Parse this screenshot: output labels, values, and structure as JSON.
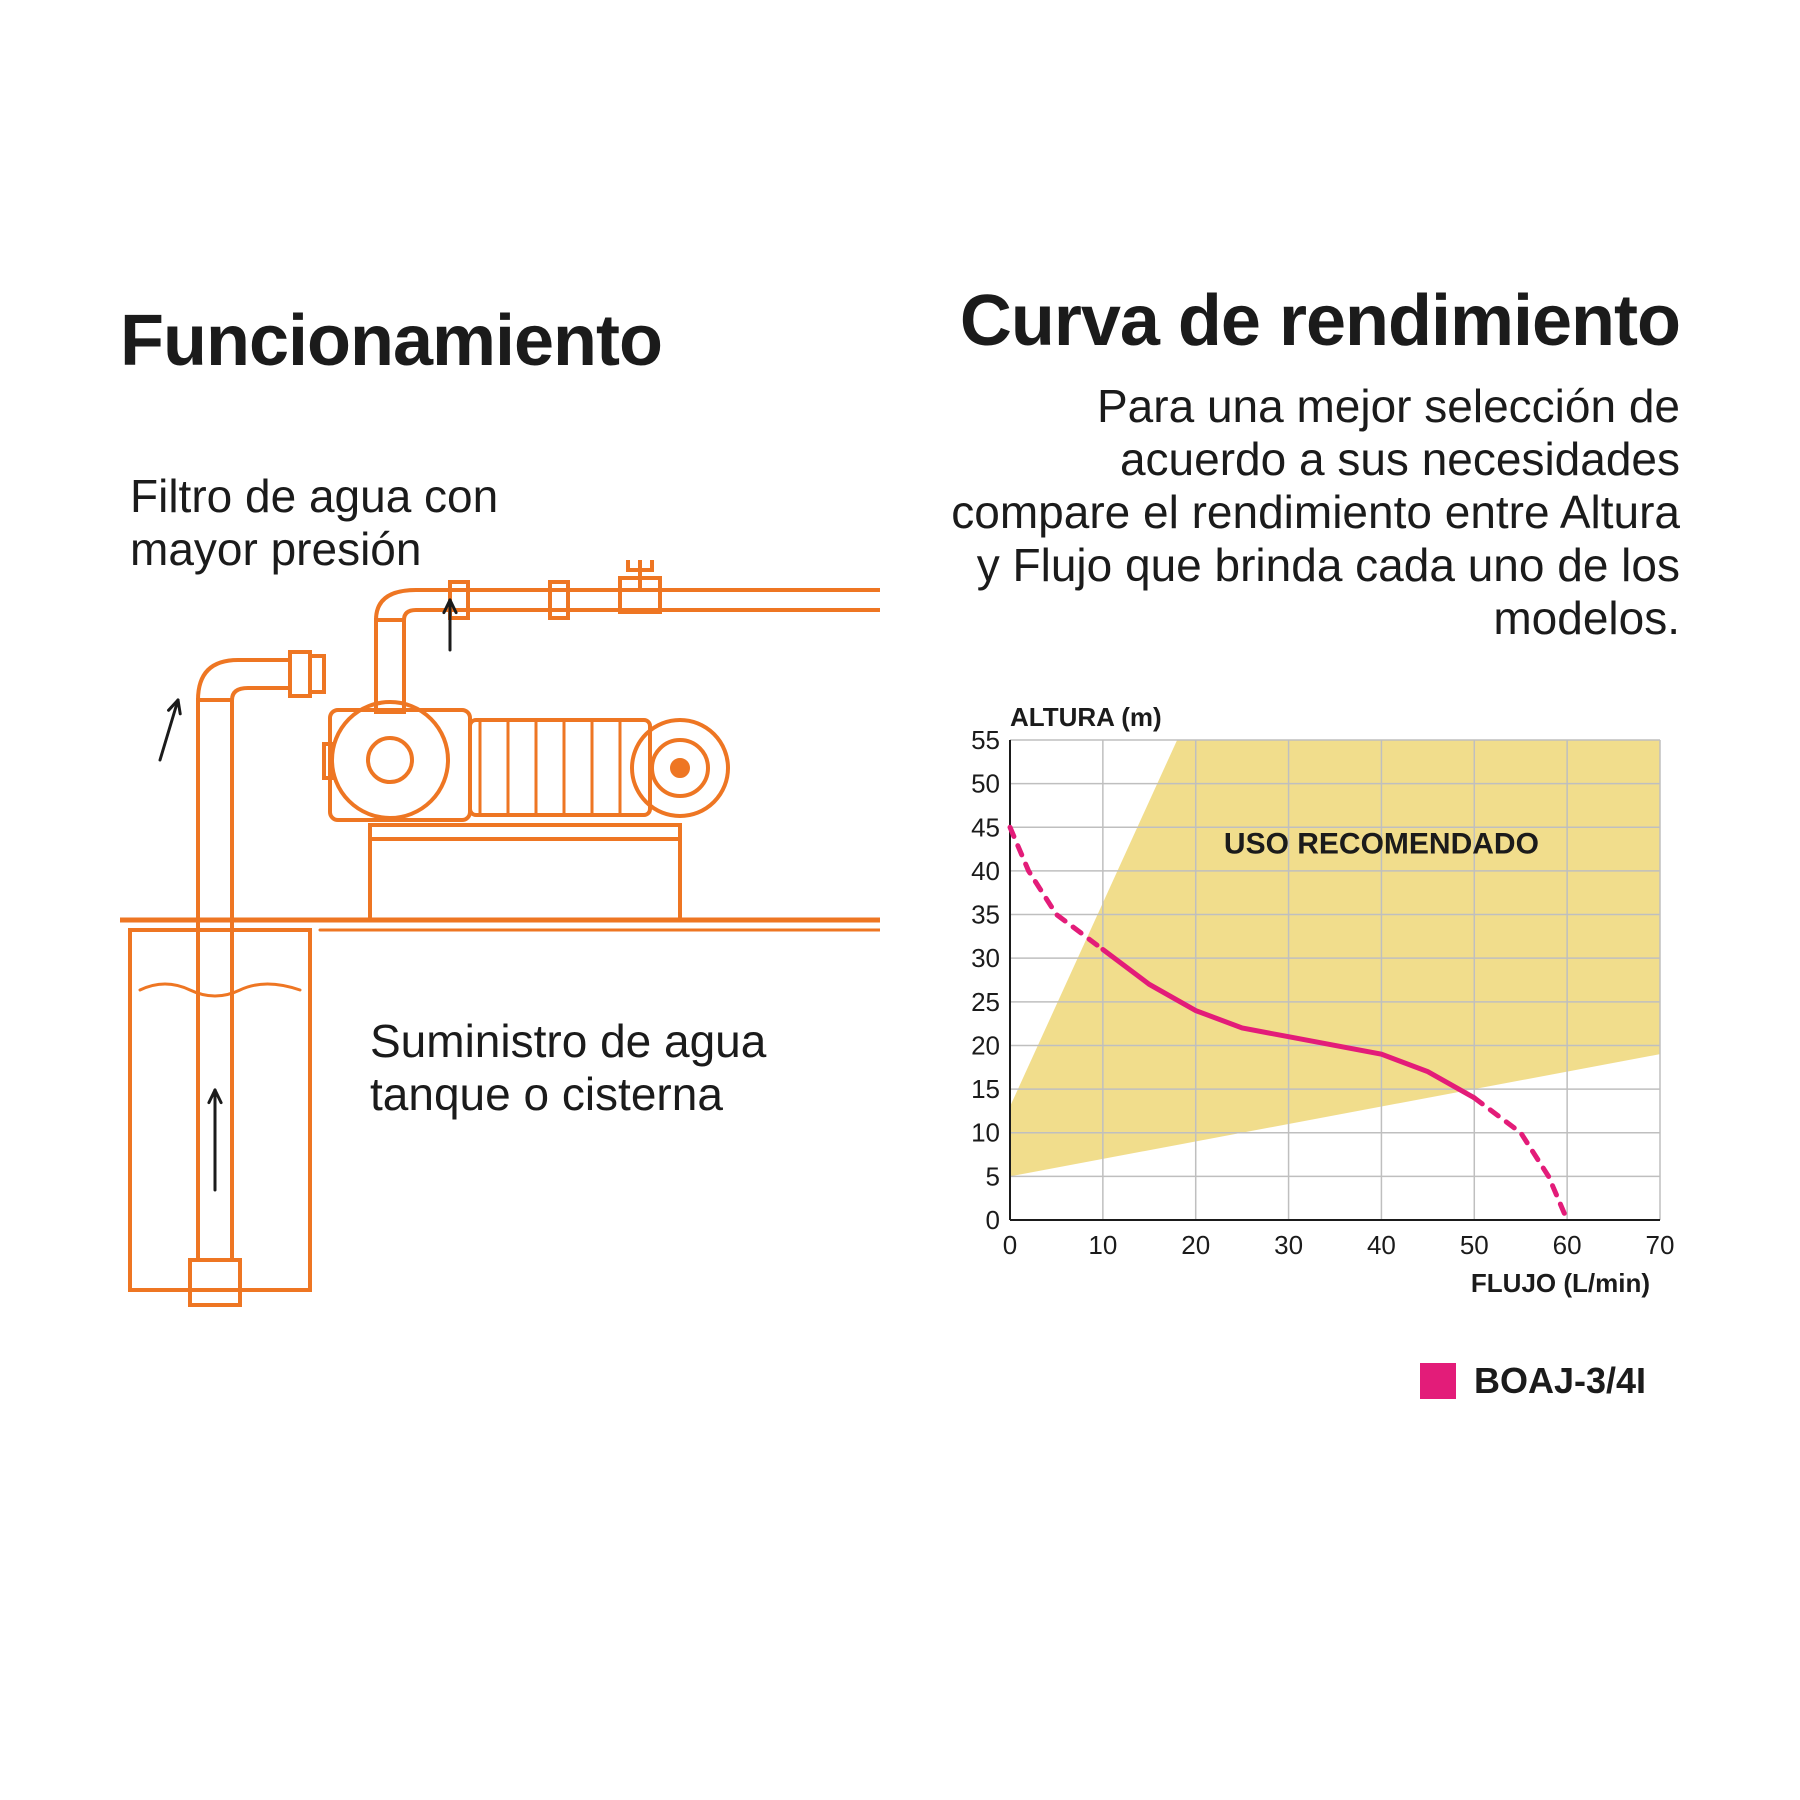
{
  "left": {
    "title": "Funcionamiento",
    "label_top": "Filtro de agua con\nmayor presión",
    "label_bottom": "Suministro de agua\ntanque o cisterna",
    "diagram": {
      "stroke": "#ee7623",
      "stroke_width": 4,
      "fill": "#ffffff"
    }
  },
  "right": {
    "title": "Curva de rendimiento",
    "description": "Para una mejor selección de acuerdo a sus necesidades compare el rendimiento entre Altura y Flujo que brinda cada uno de los modelos."
  },
  "chart": {
    "type": "line",
    "y_title": "ALTURA (m)",
    "x_title": "FLUJO (L/min)",
    "xlim": [
      0,
      70
    ],
    "ylim": [
      0,
      55
    ],
    "xtick_step": 10,
    "ytick_step": 5,
    "x_ticks": [
      0,
      10,
      20,
      30,
      40,
      50,
      60,
      70
    ],
    "y_ticks": [
      0,
      5,
      10,
      15,
      20,
      25,
      30,
      35,
      40,
      45,
      50,
      55
    ],
    "grid_color": "#bfbfbf",
    "axis_color": "#1b1b1b",
    "axis_width": 2,
    "tick_fontsize": 26,
    "axis_title_fontsize": 26,
    "background_color": "#ffffff",
    "recommended_zone": {
      "label": "USO RECOMENDADO",
      "label_fontsize": 30,
      "label_weight": 700,
      "fill": "#efd980",
      "opacity": 0.9,
      "polygon_points_xy": [
        [
          0,
          5
        ],
        [
          0,
          13
        ],
        [
          18,
          55
        ],
        [
          70,
          55
        ],
        [
          70,
          19
        ]
      ]
    },
    "series": {
      "name": "BOAJ-3/4I",
      "color": "#e31c79",
      "line_width": 5,
      "dash_pattern": "10,10",
      "points_xy": [
        [
          0,
          45
        ],
        [
          2,
          40
        ],
        [
          5,
          35
        ],
        [
          10,
          31
        ],
        [
          15,
          27
        ],
        [
          20,
          24
        ],
        [
          25,
          22
        ],
        [
          30,
          21
        ],
        [
          35,
          20
        ],
        [
          40,
          19
        ],
        [
          45,
          17
        ],
        [
          50,
          14
        ],
        [
          55,
          10
        ],
        [
          58,
          5
        ],
        [
          60,
          0
        ]
      ],
      "solid_range_x": [
        10,
        50
      ]
    },
    "legend": {
      "swatch_color": "#e31c79",
      "label": "BOAJ-3/4I"
    }
  },
  "colors": {
    "text": "#1b1b1b"
  }
}
